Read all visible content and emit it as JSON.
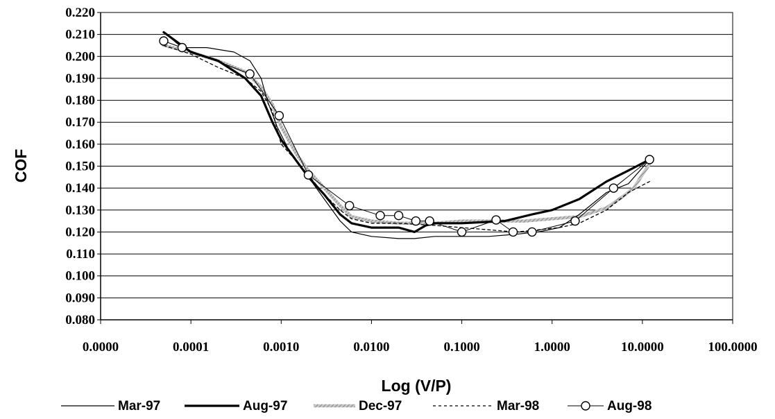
{
  "chart_data": {
    "type": "line",
    "title": "",
    "xlabel": "Log (V/P)",
    "ylabel": "COF",
    "x_scale": "log",
    "xlim": [
      1e-05,
      100
    ],
    "ylim": [
      0.08,
      0.22
    ],
    "y_step": 0.01,
    "x_ticks": [
      1e-05,
      0.0001,
      0.001,
      0.01,
      0.1,
      1,
      10,
      100
    ],
    "x_tick_labels": [
      "0.0000",
      "0.0001",
      "0.0010",
      "0.0100",
      "0.1000",
      "1.0000",
      "10.0000",
      "100.0000"
    ],
    "y_tick_labels": [
      "0.080",
      "0.090",
      "0.100",
      "0.110",
      "0.120",
      "0.130",
      "0.140",
      "0.150",
      "0.160",
      "0.170",
      "0.180",
      "0.190",
      "0.200",
      "0.210",
      "0.220"
    ],
    "grid": "horizontal",
    "legend_position": "bottom",
    "series": [
      {
        "name": "Mar-97",
        "style": "thin",
        "color": "#000000",
        "points": [
          [
            5e-05,
            0.211
          ],
          [
            8e-05,
            0.204
          ],
          [
            0.00015,
            0.204
          ],
          [
            0.0003,
            0.202
          ],
          [
            0.00045,
            0.198
          ],
          [
            0.0006,
            0.19
          ],
          [
            0.0007,
            0.18
          ],
          [
            0.0009,
            0.168
          ],
          [
            0.0013,
            0.155
          ],
          [
            0.002,
            0.145
          ],
          [
            0.003,
            0.135
          ],
          [
            0.0045,
            0.125
          ],
          [
            0.006,
            0.12
          ],
          [
            0.01,
            0.118
          ],
          [
            0.02,
            0.117
          ],
          [
            0.03,
            0.117
          ],
          [
            0.05,
            0.118
          ],
          [
            0.1,
            0.118
          ],
          [
            0.2,
            0.118
          ],
          [
            0.4,
            0.119
          ],
          [
            0.7,
            0.12
          ],
          [
            1.2,
            0.122
          ],
          [
            2,
            0.128
          ],
          [
            4,
            0.138
          ],
          [
            7,
            0.142
          ],
          [
            12,
            0.153
          ]
        ]
      },
      {
        "name": "Aug-97",
        "style": "thick",
        "color": "#000000",
        "points": [
          [
            5e-05,
            0.211
          ],
          [
            0.0001,
            0.202
          ],
          [
            0.0002,
            0.198
          ],
          [
            0.0004,
            0.19
          ],
          [
            0.0006,
            0.182
          ],
          [
            0.0008,
            0.17
          ],
          [
            0.001,
            0.162
          ],
          [
            0.0015,
            0.152
          ],
          [
            0.002,
            0.145
          ],
          [
            0.003,
            0.137
          ],
          [
            0.0045,
            0.128
          ],
          [
            0.006,
            0.124
          ],
          [
            0.01,
            0.122
          ],
          [
            0.02,
            0.122
          ],
          [
            0.03,
            0.12
          ],
          [
            0.04,
            0.123
          ],
          [
            0.05,
            0.124
          ],
          [
            0.1,
            0.124
          ],
          [
            0.3,
            0.125
          ],
          [
            0.6,
            0.128
          ],
          [
            1,
            0.13
          ],
          [
            2,
            0.135
          ],
          [
            4,
            0.143
          ],
          [
            7,
            0.148
          ],
          [
            12,
            0.153
          ]
        ]
      },
      {
        "name": "Dec-97",
        "style": "hatched",
        "color": "#b0b0b0",
        "points": [
          [
            5e-05,
            0.205
          ],
          [
            0.0001,
            0.202
          ],
          [
            0.0002,
            0.198
          ],
          [
            0.0004,
            0.193
          ],
          [
            0.0006,
            0.186
          ],
          [
            0.0008,
            0.178
          ],
          [
            0.001,
            0.168
          ],
          [
            0.0015,
            0.155
          ],
          [
            0.002,
            0.148
          ],
          [
            0.003,
            0.14
          ],
          [
            0.0045,
            0.132
          ],
          [
            0.006,
            0.127
          ],
          [
            0.01,
            0.125
          ],
          [
            0.02,
            0.124
          ],
          [
            0.05,
            0.124
          ],
          [
            0.1,
            0.125
          ],
          [
            0.3,
            0.125
          ],
          [
            0.5,
            0.125
          ],
          [
            1,
            0.126
          ],
          [
            2,
            0.127
          ],
          [
            4,
            0.131
          ],
          [
            6,
            0.136
          ],
          [
            8,
            0.14
          ],
          [
            12,
            0.151
          ]
        ]
      },
      {
        "name": "Mar-98",
        "style": "dashed",
        "color": "#000000",
        "points": [
          [
            5e-05,
            0.205
          ],
          [
            0.0001,
            0.201
          ],
          [
            0.0002,
            0.195
          ],
          [
            0.0004,
            0.19
          ],
          [
            0.0006,
            0.184
          ],
          [
            0.0008,
            0.175
          ],
          [
            0.001,
            0.16
          ],
          [
            0.0015,
            0.152
          ],
          [
            0.002,
            0.146
          ],
          [
            0.003,
            0.137
          ],
          [
            0.0045,
            0.13
          ],
          [
            0.006,
            0.126
          ],
          [
            0.01,
            0.124
          ],
          [
            0.02,
            0.124
          ],
          [
            0.05,
            0.123
          ],
          [
            0.1,
            0.122
          ],
          [
            0.2,
            0.121
          ],
          [
            0.4,
            0.12
          ],
          [
            0.7,
            0.121
          ],
          [
            1.2,
            0.122
          ],
          [
            2,
            0.124
          ],
          [
            4,
            0.13
          ],
          [
            7,
            0.138
          ],
          [
            12,
            0.143
          ]
        ]
      },
      {
        "name": "Aug-98",
        "style": "circles",
        "color": "#000000",
        "points": [
          [
            5e-05,
            0.207
          ],
          [
            8e-05,
            0.204
          ],
          [
            0.00045,
            0.192
          ],
          [
            0.00095,
            0.173
          ],
          [
            0.002,
            0.146
          ],
          [
            0.0057,
            0.132
          ],
          [
            0.0125,
            0.1275
          ],
          [
            0.02,
            0.1275
          ],
          [
            0.031,
            0.125
          ],
          [
            0.044,
            0.125
          ],
          [
            0.1,
            0.12
          ],
          [
            0.24,
            0.1255
          ],
          [
            0.37,
            0.12
          ],
          [
            0.6,
            0.12
          ],
          [
            1.8,
            0.125
          ],
          [
            4.8,
            0.14
          ],
          [
            12,
            0.153
          ]
        ]
      }
    ]
  }
}
